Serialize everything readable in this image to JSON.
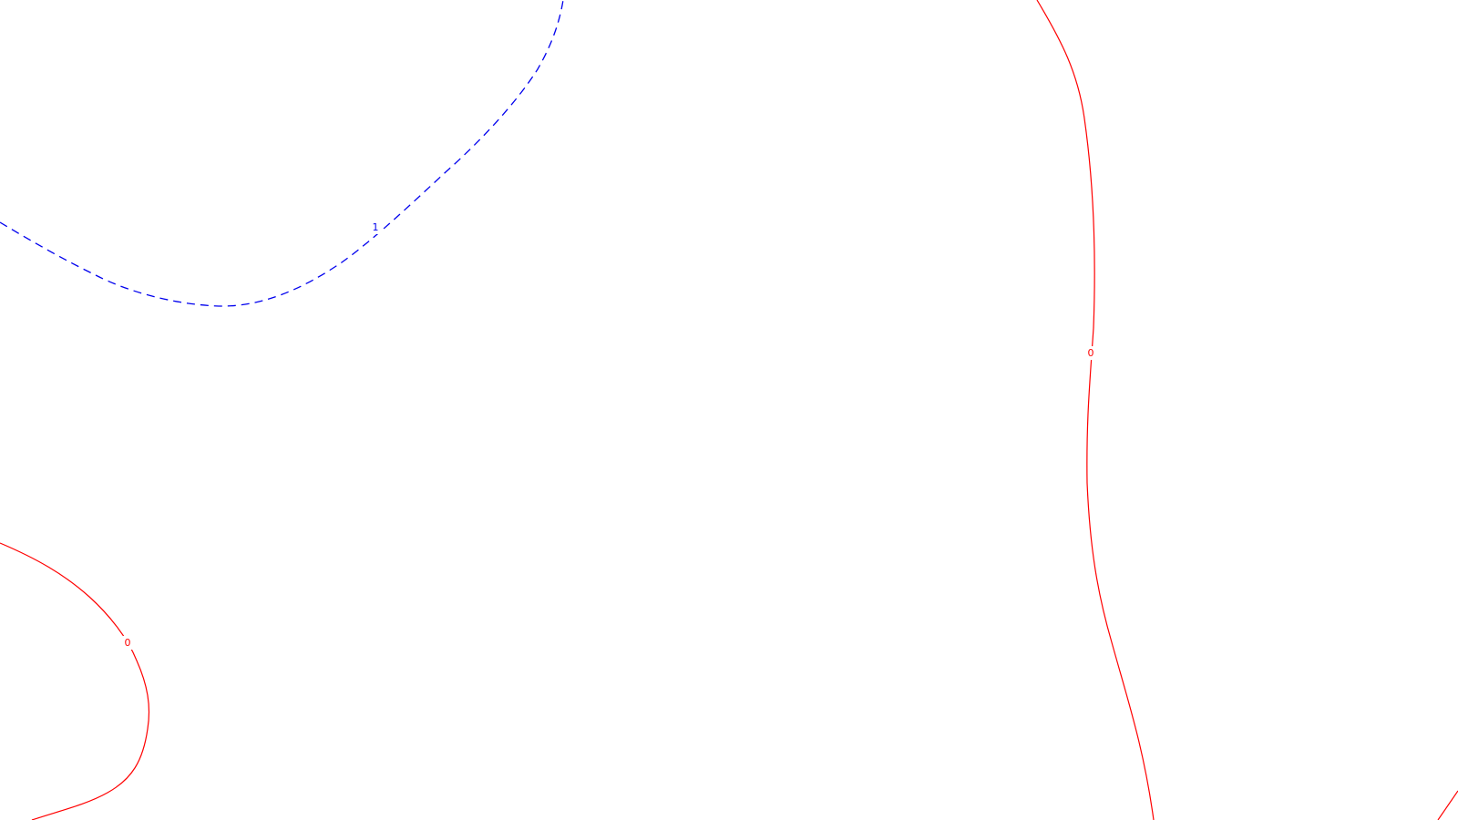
{
  "map": {
    "background_color": "#ffffff",
    "contours": [
      {
        "id": "contour-1-upper-left",
        "label": "1",
        "color": "#0000ee",
        "style": "dashed"
      },
      {
        "id": "contour-0-right",
        "label": "0",
        "color": "#ff0000",
        "style": "solid"
      },
      {
        "id": "contour-0-lower-left",
        "label": "0",
        "color": "#ff0000",
        "style": "solid"
      },
      {
        "id": "contour-0-corner",
        "label": "",
        "color": "#ff0000",
        "style": "solid"
      }
    ]
  }
}
